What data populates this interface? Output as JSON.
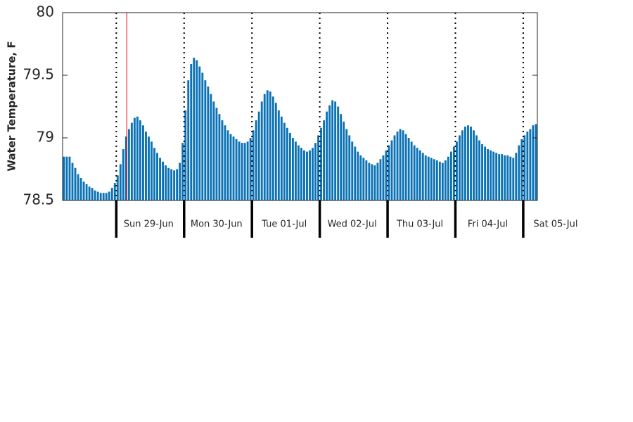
{
  "chart_data": {
    "type": "bar",
    "ylabel": "Water Temperature, F",
    "color": "#0b72b5",
    "values": [
      78.85,
      78.85,
      78.85,
      78.8,
      78.76,
      78.71,
      78.68,
      78.65,
      78.63,
      78.61,
      78.6,
      78.58,
      78.57,
      78.56,
      78.56,
      78.56,
      78.57,
      78.6,
      78.64,
      78.7,
      78.79,
      78.91,
      79.01,
      79.07,
      79.12,
      79.16,
      79.17,
      79.14,
      79.1,
      79.05,
      79.01,
      78.97,
      78.92,
      78.88,
      78.84,
      78.81,
      78.78,
      78.76,
      78.75,
      78.74,
      78.75,
      78.8,
      78.96,
      79.22,
      79.46,
      79.59,
      79.64,
      79.62,
      79.57,
      79.52,
      79.46,
      79.41,
      79.35,
      79.29,
      79.24,
      79.19,
      79.14,
      79.1,
      79.06,
      79.03,
      79.01,
      78.99,
      78.97,
      78.96,
      78.96,
      78.97,
      79.0,
      79.06,
      79.14,
      79.21,
      79.29,
      79.35,
      79.38,
      79.37,
      79.33,
      79.28,
      79.22,
      79.17,
      79.12,
      79.08,
      79.04,
      79.0,
      78.97,
      78.94,
      78.92,
      78.9,
      78.89,
      78.9,
      78.92,
      78.96,
      79.02,
      79.08,
      79.14,
      79.21,
      79.26,
      79.3,
      79.29,
      79.25,
      79.19,
      79.13,
      79.07,
      79.02,
      78.97,
      78.93,
      78.89,
      78.86,
      78.84,
      78.82,
      78.8,
      78.79,
      78.78,
      78.8,
      78.83,
      78.86,
      78.9,
      78.94,
      78.98,
      79.02,
      79.05,
      79.07,
      79.06,
      79.03,
      79.0,
      78.97,
      78.94,
      78.92,
      78.9,
      78.88,
      78.86,
      78.85,
      78.84,
      78.83,
      78.82,
      78.81,
      78.8,
      78.82,
      78.85,
      78.89,
      78.93,
      78.97,
      79.02,
      79.06,
      79.09,
      79.1,
      79.09,
      79.06,
      79.02,
      78.98,
      78.95,
      78.93,
      78.91,
      78.9,
      78.89,
      78.88,
      78.87,
      78.87,
      78.86,
      78.86,
      78.85,
      78.84,
      78.88,
      78.94,
      78.99,
      79.02,
      79.05,
      79.07,
      79.1,
      79.11
    ],
    "xlim": [
      0,
      168
    ],
    "xticks": [
      {
        "value": 19,
        "label": "Sun 29-Jun"
      },
      {
        "value": 43,
        "label": "Mon 30-Jun"
      },
      {
        "value": 67,
        "label": "Tue 01-Jul"
      },
      {
        "value": 91,
        "label": "Wed 02-Jul"
      },
      {
        "value": 115,
        "label": "Thu 03-Jul"
      },
      {
        "value": 139,
        "label": "Fri 04-Jul"
      },
      {
        "value": 163,
        "label": "Sat 05-Jul"
      }
    ],
    "ylim": [
      78.5,
      80
    ],
    "yticks": [
      78.5,
      79,
      79.5,
      80
    ],
    "marker_x": 22.7,
    "marker_color": "#e8000b"
  }
}
